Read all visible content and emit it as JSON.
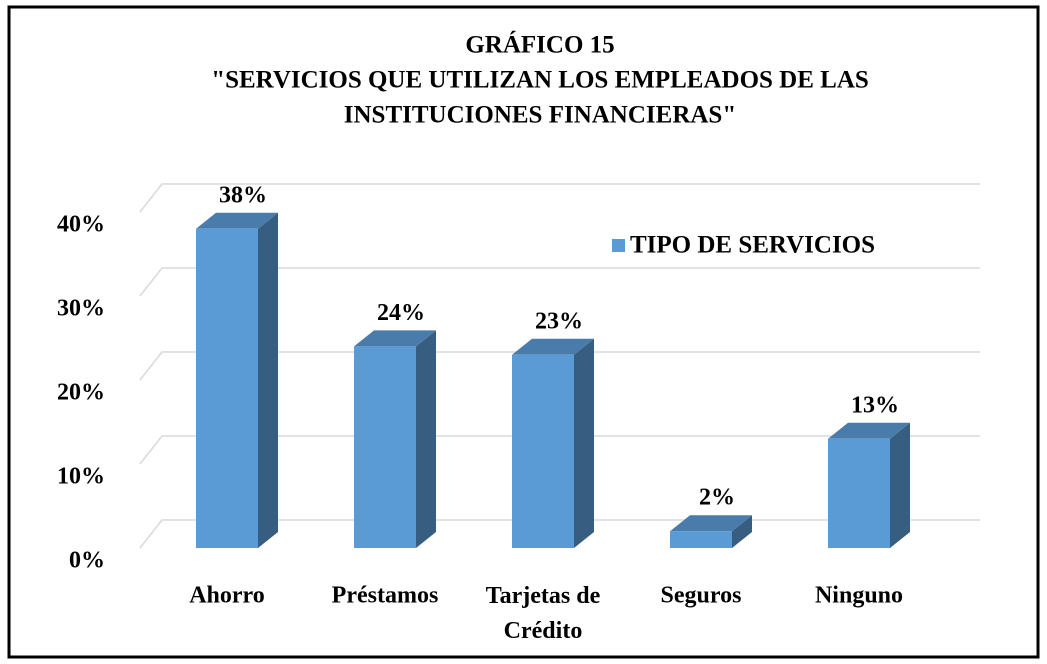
{
  "chart_data": {
    "type": "bar",
    "title": [
      "GRÁFICO 15",
      "\"SERVICIOS QUE UTILIZAN LOS EMPLEADOS DE LAS",
      "INSTITUCIONES FINANCIERAS\""
    ],
    "categories": [
      "Ahorro",
      "Préstamos",
      "Tarjetas de Crédito",
      "Seguros",
      "Ninguno"
    ],
    "series": [
      {
        "name": "TIPO DE SERVICIOS",
        "color": "#5b9bd5",
        "values": [
          38,
          24,
          23,
          2,
          13
        ],
        "value_labels": [
          "38%",
          "24%",
          "23%",
          "2%",
          "13%"
        ]
      }
    ],
    "ylim": [
      0,
      40
    ],
    "yticks": [
      {
        "value": 0,
        "label": "0%"
      },
      {
        "value": 10,
        "label": "10%"
      },
      {
        "value": 20,
        "label": "20%"
      },
      {
        "value": 30,
        "label": "30%"
      },
      {
        "value": 40,
        "label": "40%"
      }
    ],
    "grid": true,
    "legend": "upper right"
  }
}
